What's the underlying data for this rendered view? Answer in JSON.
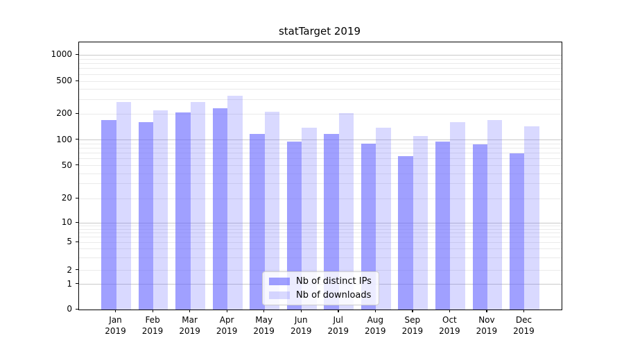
{
  "title": "statTarget 2019",
  "chart_data": {
    "type": "bar",
    "title": "statTarget 2019",
    "categories": [
      "Jan 2019",
      "Feb 2019",
      "Mar 2019",
      "Apr 2019",
      "May 2019",
      "Jun 2019",
      "Jul 2019",
      "Aug 2019",
      "Sep 2019",
      "Oct 2019",
      "Nov 2019",
      "Dec 2019"
    ],
    "month_labels": [
      "Jan",
      "Feb",
      "Mar",
      "Apr",
      "May",
      "Jun",
      "Jul",
      "Aug",
      "Sep",
      "Oct",
      "Nov",
      "Dec"
    ],
    "year_label": "2019",
    "series": [
      {
        "name": "Nb of distinct IPs",
        "color": "rgba(102,102,255,0.62)",
        "values": [
          170,
          160,
          210,
          235,
          118,
          96,
          118,
          91,
          65,
          96,
          89,
          70
        ]
      },
      {
        "name": "Nb of downloads",
        "color": "rgba(102,102,255,0.25)",
        "values": [
          278,
          220,
          278,
          330,
          212,
          140,
          207,
          140,
          112,
          161,
          170,
          143
        ]
      }
    ],
    "yticks": [
      0,
      1,
      2,
      5,
      10,
      20,
      50,
      100,
      200,
      500,
      1000
    ],
    "yscale": "log-like (symlog/asinh), zero shown at baseline",
    "ylim": [
      0,
      1400
    ],
    "grid": true,
    "grid_minor": true,
    "legend_position": "lower center",
    "xlabel": "",
    "ylabel": ""
  },
  "colors": {
    "grid_major": "#c9c9c9",
    "grid_minor": "#eaeaea",
    "spine": "#000000",
    "background": "#ffffff"
  }
}
